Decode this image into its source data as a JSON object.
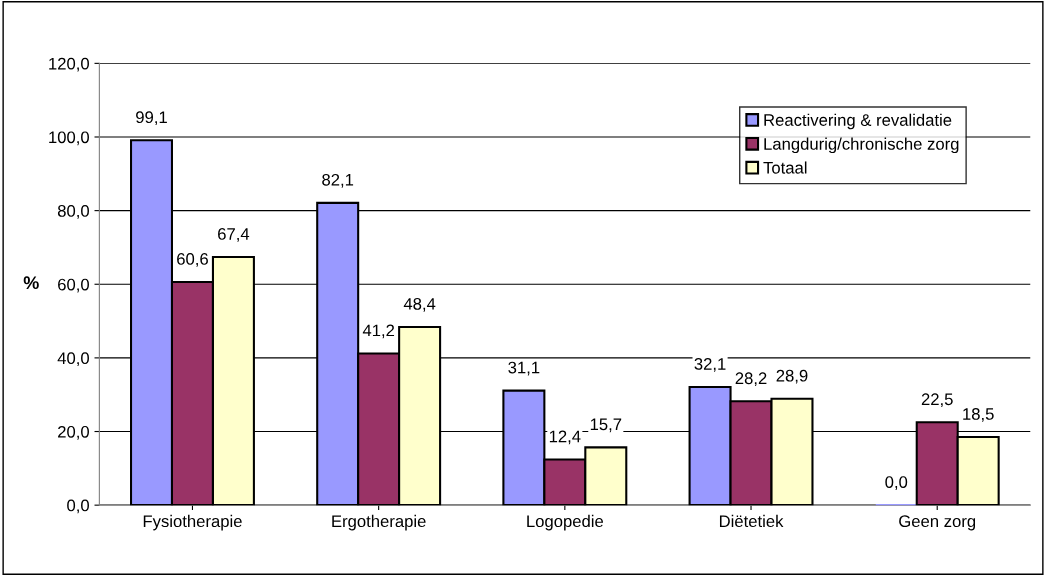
{
  "chart_data": {
    "type": "bar",
    "ylabel": "%",
    "categories": [
      "Fysiotherapie",
      "Ergotherapie",
      "Logopedie",
      "Diëtetiek",
      "Geen zorg"
    ],
    "series": [
      {
        "name": "Reactivering & revalidatie",
        "color": "#9999ff",
        "values": [
          99.1,
          82.1,
          31.1,
          32.1,
          0.0
        ],
        "value_labels": [
          "99,1",
          "82,1",
          "31,1",
          "32,1",
          "0,0"
        ]
      },
      {
        "name": "Langdurig/chronische zorg",
        "color": "#993366",
        "values": [
          60.6,
          41.2,
          12.4,
          28.2,
          22.5
        ],
        "value_labels": [
          "60,6",
          "41,2",
          "12,4",
          "28,2",
          "22,5"
        ]
      },
      {
        "name": "Totaal",
        "color": "#ffffcc",
        "values": [
          67.4,
          48.4,
          15.7,
          28.9,
          18.5
        ],
        "value_labels": [
          "67,4",
          "48,4",
          "15,7",
          "28,9",
          "18,5"
        ]
      }
    ],
    "ylim": [
      0,
      120
    ],
    "yticks": [
      {
        "value": 0,
        "label": "0,0"
      },
      {
        "value": 20,
        "label": "20,0"
      },
      {
        "value": 40,
        "label": "40,0"
      },
      {
        "value": 60,
        "label": "60,0"
      },
      {
        "value": 80,
        "label": "80,0"
      },
      {
        "value": 100,
        "label": "100,0"
      },
      {
        "value": 120,
        "label": "120,0"
      }
    ],
    "grid": "y",
    "legend": "top right"
  }
}
